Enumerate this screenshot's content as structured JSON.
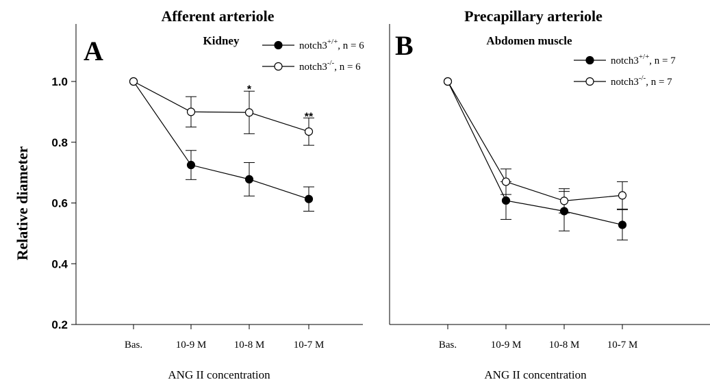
{
  "figure": {
    "ylabel": "Relative diameter"
  },
  "chart_data": [
    {
      "type": "line",
      "panel_letter": "A",
      "title": "Afferent arteriole",
      "subtitle": "Kidney",
      "xlabel": "ANG II concentration",
      "ylabel": "Relative diameter",
      "categories": [
        "Bas.",
        "10-9 M",
        "10-8 M",
        "10-7 M"
      ],
      "ylim": [
        0.2,
        1.2
      ],
      "yticks": [
        0.2,
        0.4,
        0.6,
        0.8,
        1.0
      ],
      "ytick_labels": [
        "0.2",
        "0.4",
        "0.6",
        "0.8",
        "1.0"
      ],
      "grid": false,
      "legend_position": "top-right",
      "series": [
        {
          "name": "notch3+/+, n = 6",
          "name_base": "notch3",
          "name_sup": "+/+",
          "name_rest": ", n = 6",
          "marker": "filled",
          "values": [
            1.0,
            0.725,
            0.678,
            0.613
          ],
          "errors": [
            0,
            0.048,
            0.055,
            0.04
          ]
        },
        {
          "name": "notch3-/-, n = 6",
          "name_base": "notch3",
          "name_sup": "-/-",
          "name_rest": ", n = 6",
          "marker": "open",
          "values": [
            1.0,
            0.9,
            0.898,
            0.835
          ],
          "errors": [
            0,
            0.05,
            0.07,
            0.045
          ]
        }
      ],
      "annotations": [
        {
          "category": "10-8 M",
          "text": "*",
          "y": 0.985
        },
        {
          "category": "10-7 M",
          "text": "**",
          "y": 0.895
        }
      ]
    },
    {
      "type": "line",
      "panel_letter": "B",
      "title": "Precapillary arteriole",
      "subtitle": "Abdomen muscle",
      "xlabel": "ANG II concentration",
      "ylabel": "",
      "categories": [
        "Bas.",
        "10-9 M",
        "10-8 M",
        "10-7 M"
      ],
      "ylim": [
        0.2,
        1.2
      ],
      "grid": false,
      "legend_position": "top-right",
      "series": [
        {
          "name": "notch3+/+, n = 7",
          "name_base": "notch3",
          "name_sup": "+/+",
          "name_rest": ", n = 7",
          "marker": "filled",
          "values": [
            1.0,
            0.608,
            0.573,
            0.528
          ],
          "errors": [
            0,
            0.062,
            0.065,
            0.05
          ]
        },
        {
          "name": "notch3-/-, n = 7",
          "name_base": "notch3",
          "name_sup": "-/-",
          "name_rest": ", n = 7",
          "marker": "open",
          "values": [
            1.0,
            0.67,
            0.607,
            0.625
          ],
          "errors": [
            0,
            0.042,
            0.04,
            0.045
          ]
        }
      ],
      "annotations": []
    }
  ]
}
